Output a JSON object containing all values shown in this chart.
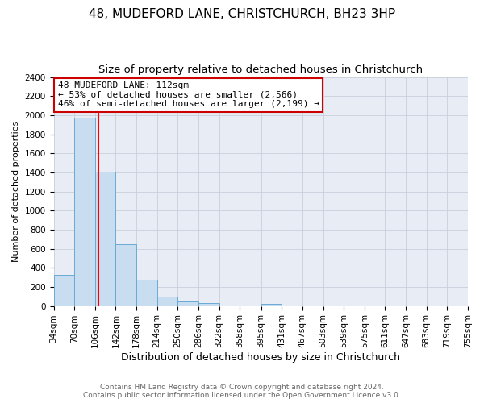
{
  "title": "48, MUDEFORD LANE, CHRISTCHURCH, BH23 3HP",
  "subtitle": "Size of property relative to detached houses in Christchurch",
  "xlabel": "Distribution of detached houses by size in Christchurch",
  "ylabel": "Number of detached properties",
  "bin_edges": [
    34,
    70,
    106,
    142,
    178,
    214,
    250,
    286,
    322,
    358,
    395,
    431,
    467,
    503,
    539,
    575,
    611,
    647,
    683,
    719,
    755
  ],
  "bin_labels": [
    "34sqm",
    "70sqm",
    "106sqm",
    "142sqm",
    "178sqm",
    "214sqm",
    "250sqm",
    "286sqm",
    "322sqm",
    "358sqm",
    "395sqm",
    "431sqm",
    "467sqm",
    "503sqm",
    "539sqm",
    "575sqm",
    "611sqm",
    "647sqm",
    "683sqm",
    "719sqm",
    "755sqm"
  ],
  "counts": [
    325,
    1975,
    1410,
    650,
    275,
    100,
    45,
    30,
    0,
    0,
    25,
    0,
    0,
    0,
    0,
    0,
    0,
    0,
    0,
    0
  ],
  "bar_color": "#c9ddf0",
  "bar_edge_color": "#6aaad4",
  "grid_color": "#c8d0dc",
  "plot_bg_color": "#e8edf5",
  "fig_bg_color": "#ffffff",
  "red_line_x": 112,
  "annotation_title": "48 MUDEFORD LANE: 112sqm",
  "annotation_line1": "← 53% of detached houses are smaller (2,566)",
  "annotation_line2": "46% of semi-detached houses are larger (2,199) →",
  "annotation_box_color": "#ffffff",
  "annotation_box_edge": "#cc0000",
  "ylim": [
    0,
    2400
  ],
  "yticks": [
    0,
    200,
    400,
    600,
    800,
    1000,
    1200,
    1400,
    1600,
    1800,
    2000,
    2200,
    2400
  ],
  "footer1": "Contains HM Land Registry data © Crown copyright and database right 2024.",
  "footer2": "Contains public sector information licensed under the Open Government Licence v3.0.",
  "title_fontsize": 11,
  "subtitle_fontsize": 9.5,
  "xlabel_fontsize": 9,
  "ylabel_fontsize": 8,
  "tick_fontsize": 7.5,
  "footer_fontsize": 6.5,
  "annotation_fontsize": 8
}
